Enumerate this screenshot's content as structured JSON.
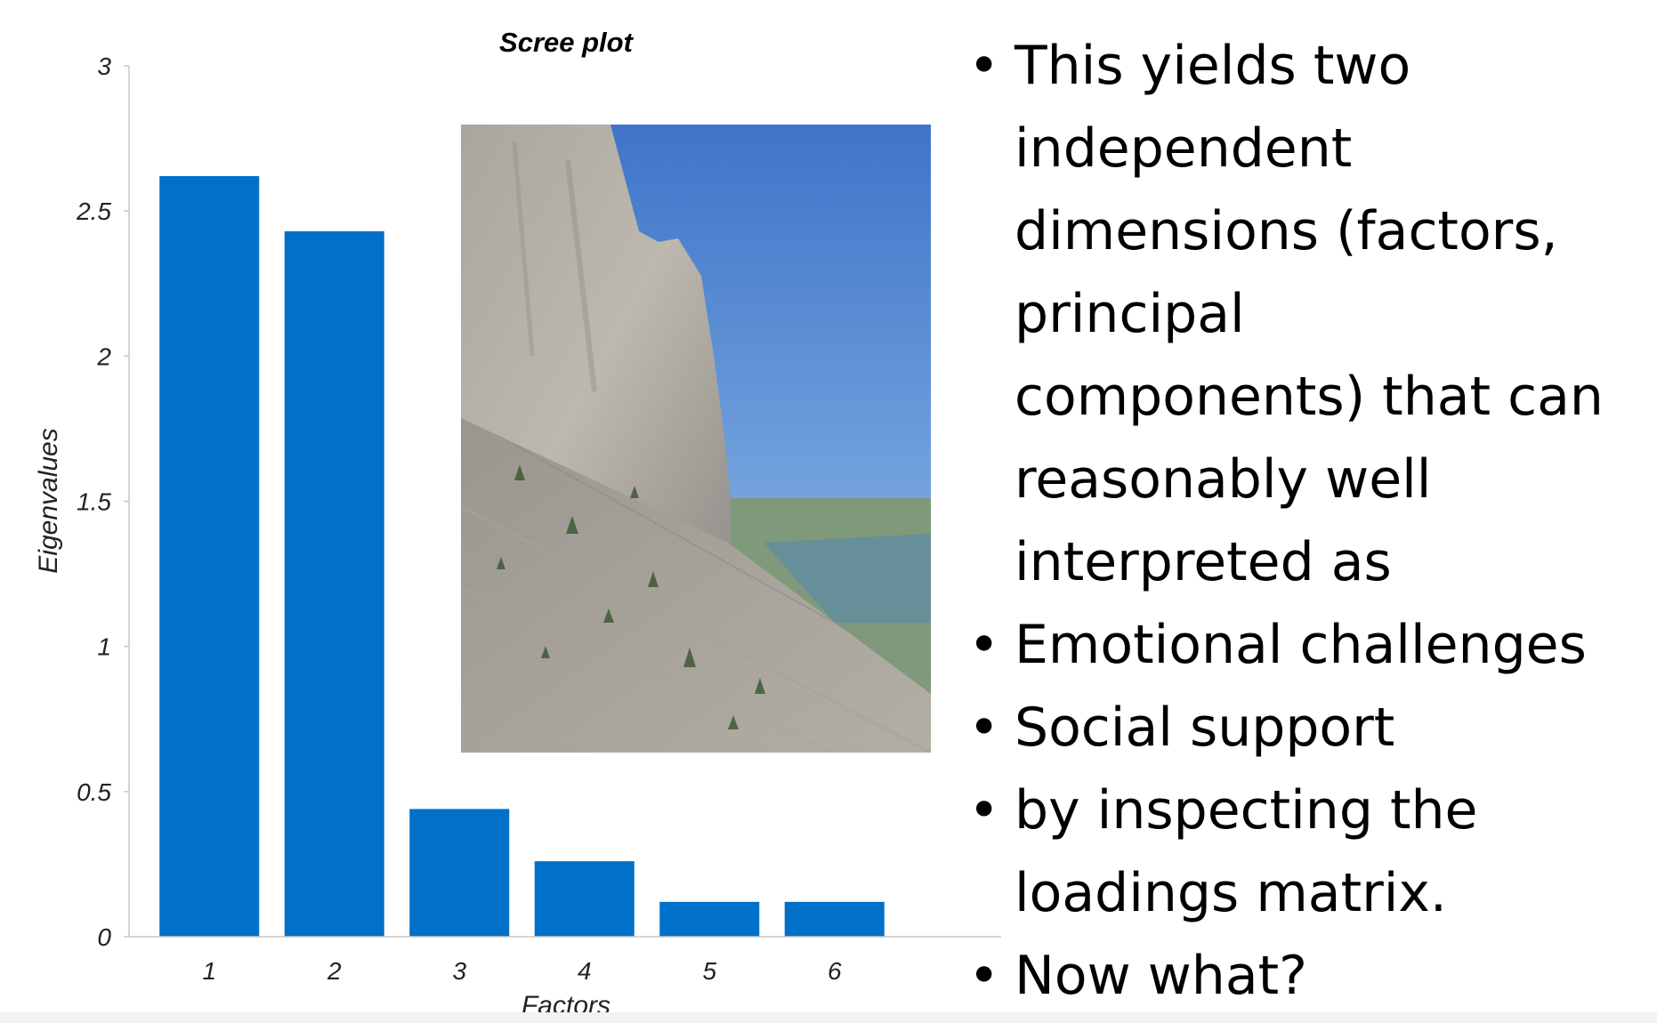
{
  "chart_data": {
    "type": "bar",
    "title": "Scree plot",
    "xlabel": "Factors",
    "ylabel": "Eigenvalues",
    "categories": [
      "1",
      "2",
      "3",
      "4",
      "5",
      "6"
    ],
    "values": [
      2.62,
      2.43,
      0.44,
      0.26,
      0.12,
      0.12
    ],
    "ylim": [
      0,
      3
    ],
    "yticks": [
      "0",
      "0.5",
      "1",
      "1.5",
      "2",
      "2.5",
      "3"
    ],
    "bar_color": "#0070c8",
    "grid": false
  },
  "slide": {
    "bullets": [
      {
        "bullet": "•",
        "text": "This yields two"
      },
      {
        "bullet": "",
        "text": "independent"
      },
      {
        "bullet": "",
        "text": "dimensions (factors,"
      },
      {
        "bullet": "",
        "text": "principal"
      },
      {
        "bullet": "",
        "text": "components) that can"
      },
      {
        "bullet": "",
        "text": "reasonably well"
      },
      {
        "bullet": "",
        "text": "interpreted as"
      },
      {
        "bullet": "•",
        "text": "Emotional challenges"
      },
      {
        "bullet": "•",
        "text": "Social support"
      },
      {
        "bullet": "•",
        "text": "by inspecting the"
      },
      {
        "bullet": "",
        "text": "loadings matrix."
      },
      {
        "bullet": "•",
        "text": "Now what?"
      }
    ]
  }
}
